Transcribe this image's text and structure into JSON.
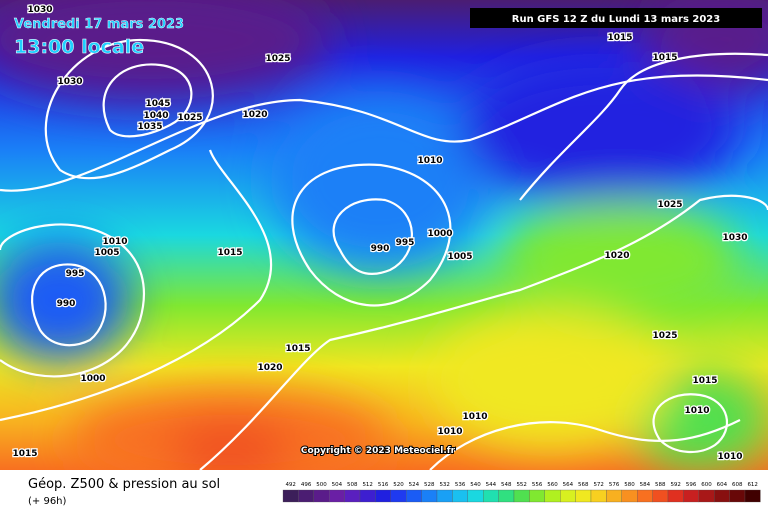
{
  "header": {
    "date": "Vendredi 17 mars 2023",
    "time": "13:00 locale",
    "run": "Run GFS 12 Z du Lundi 13 mars 2023"
  },
  "map": {
    "isobar_labels": [
      1030,
      1030,
      1045,
      1040,
      1035,
      1025,
      1025,
      1020,
      1015,
      1015,
      1010,
      1025,
      1030,
      1020,
      1010,
      1005,
      995,
      990,
      1015,
      990,
      995,
      1000,
      1005,
      1025,
      1015,
      1020,
      1000,
      1015,
      1010,
      1010,
      1010,
      1015,
      1010
    ],
    "copyright": "Copyright © 2023 Meteociel.fr"
  },
  "footer": {
    "title": "Géop. Z500 & pression au sol",
    "lead": "(+ 96h)"
  },
  "legend": {
    "values": [
      492,
      496,
      500,
      504,
      508,
      512,
      516,
      520,
      524,
      528,
      532,
      536,
      540,
      544,
      548,
      552,
      556,
      560,
      564,
      568,
      572,
      576,
      580,
      584,
      588,
      592,
      596,
      600,
      604,
      608,
      612
    ],
    "colors": [
      "#3c1f5a",
      "#4b1d72",
      "#5a1c8a",
      "#6a1fa5",
      "#5a1fbf",
      "#3d1fd0",
      "#2020e0",
      "#1f3af0",
      "#1a5cf5",
      "#1a80f7",
      "#19a0f5",
      "#1ac0f0",
      "#1ad8e0",
      "#20e0b0",
      "#30e080",
      "#50e050",
      "#80e830",
      "#b0f020",
      "#d8f020",
      "#f0e820",
      "#f8d020",
      "#f8b020",
      "#f89020",
      "#f87020",
      "#f05020",
      "#e03020",
      "#c82020",
      "#a81818",
      "#881010",
      "#680808",
      "#400000"
    ]
  }
}
